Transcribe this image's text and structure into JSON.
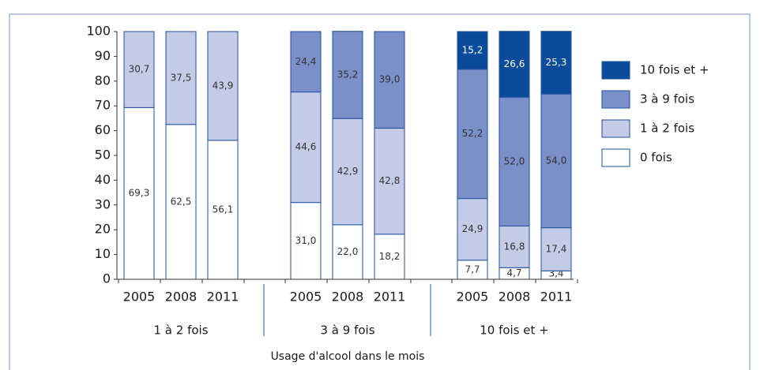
{
  "chart_data": {
    "type": "stacked-bar",
    "x_label": "Usage d'alcool dans le mois",
    "category_groups": [
      "1 à 2 fois",
      "3 à 9 fois",
      "10 fois et +"
    ],
    "categories": [
      "2005",
      "2008",
      "2011",
      "2005",
      "2008",
      "2011",
      "2005",
      "2008",
      "2011"
    ],
    "ylim": [
      0,
      100
    ],
    "yticks": [
      0,
      10,
      20,
      30,
      40,
      50,
      60,
      70,
      80,
      90,
      100
    ],
    "series": [
      {
        "name": "0 fois",
        "color": "#ffffff",
        "values": [
          69.3,
          62.5,
          56.1,
          31.0,
          22.0,
          18.2,
          7.7,
          4.7,
          3.4
        ],
        "value_labels": [
          "69,3",
          "62,5",
          "56,1",
          "31,0",
          "22,0",
          "18,2",
          "7,7",
          "4,7",
          "3,4"
        ]
      },
      {
        "name": "1 à 2 fois",
        "color": "#c5cbe7",
        "values": [
          30.7,
          37.5,
          43.9,
          44.6,
          42.9,
          42.8,
          24.9,
          16.8,
          17.4
        ],
        "value_labels": [
          "30,7",
          "37,5",
          "43,9",
          "44,6",
          "42,9",
          "42,8",
          "24,9",
          "16,8",
          "17,4"
        ]
      },
      {
        "name": "3 à 9 fois",
        "color": "#7b8fc8",
        "values": [
          null,
          null,
          null,
          24.4,
          35.2,
          39.0,
          52.2,
          52.0,
          54.0
        ],
        "value_labels": [
          null,
          null,
          null,
          "24,4",
          "35,2",
          "39,0",
          "52,2",
          "52,0",
          "54,0"
        ]
      },
      {
        "name": "10 fois et +",
        "color": "#0a4b9c",
        "values": [
          null,
          null,
          null,
          null,
          null,
          null,
          15.2,
          26.6,
          25.3
        ],
        "value_labels": [
          null,
          null,
          null,
          null,
          null,
          null,
          "15,2",
          "26,6",
          "25,3"
        ]
      }
    ]
  }
}
